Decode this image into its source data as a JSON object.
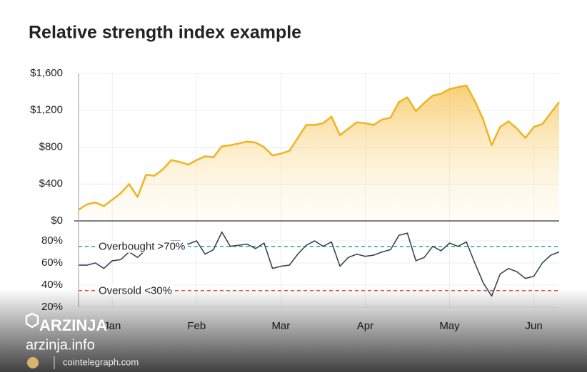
{
  "chart_data": [
    {
      "type": "area",
      "title": "Relative strength index example",
      "color": "#f0b323",
      "values": [
        120,
        180,
        200,
        160,
        230,
        300,
        400,
        260,
        500,
        490,
        560,
        660,
        640,
        610,
        660,
        700,
        690,
        810,
        820,
        840,
        860,
        850,
        800,
        710,
        730,
        760,
        900,
        1040,
        1040,
        1060,
        1130,
        930,
        1000,
        1070,
        1060,
        1040,
        1100,
        1120,
        1290,
        1340,
        1190,
        1280,
        1360,
        1380,
        1430,
        1450,
        1470,
        1300,
        1100,
        820,
        1020,
        1080,
        1000,
        900,
        1020,
        1050,
        1170,
        1290
      ],
      "ylim": [
        0,
        1600
      ],
      "yticks": [
        {
          "value": 0,
          "label": "$0"
        },
        {
          "value": 400,
          "label": "$400"
        },
        {
          "value": 800,
          "label": "$800"
        },
        {
          "value": 1200,
          "label": "$1,200"
        },
        {
          "value": 1600,
          "label": "$1,600"
        }
      ],
      "grid": true
    },
    {
      "type": "line",
      "color": "#37474f",
      "categories": [
        null,
        null,
        null,
        null,
        "Jan",
        null,
        null,
        null,
        null,
        null,
        null,
        null,
        null,
        null,
        "Feb",
        null,
        null,
        null,
        null,
        null,
        null,
        null,
        null,
        null,
        "Mar",
        null,
        null,
        null,
        null,
        null,
        null,
        null,
        null,
        null,
        "Apr",
        null,
        null,
        null,
        null,
        null,
        null,
        null,
        null,
        null,
        "May",
        null,
        null,
        null,
        null,
        null,
        null,
        null,
        null,
        null,
        "Jun",
        null,
        null,
        null
      ],
      "values": [
        58,
        58,
        60,
        55,
        62,
        63,
        70,
        65,
        72,
        74,
        78,
        80,
        80,
        77,
        80,
        68,
        72,
        88,
        75,
        76,
        77,
        73,
        78,
        55,
        57,
        58,
        68,
        76,
        80,
        75,
        79,
        57,
        65,
        68,
        66,
        67,
        70,
        72,
        85,
        87,
        62,
        65,
        75,
        71,
        78,
        75,
        79,
        60,
        42,
        30,
        50,
        55,
        52,
        46,
        48,
        60,
        67,
        70
      ],
      "ylim": [
        20,
        89
      ],
      "yticks": [
        {
          "value": 20,
          "label": "20%"
        },
        {
          "value": 40,
          "label": "40%"
        },
        {
          "value": 60,
          "label": "60%"
        },
        {
          "value": 80,
          "label": "80%"
        }
      ],
      "grid": true,
      "lines": [
        {
          "value": 75,
          "label": "Overbought >70%",
          "color": "#1fa89a"
        },
        {
          "value": 35,
          "label": "Oversold <30%",
          "color": "#e0503c"
        }
      ]
    }
  ],
  "watermark": {
    "brand": "ARZINJA",
    "site": "arzinja.info",
    "source": "cointelegraph.com"
  }
}
